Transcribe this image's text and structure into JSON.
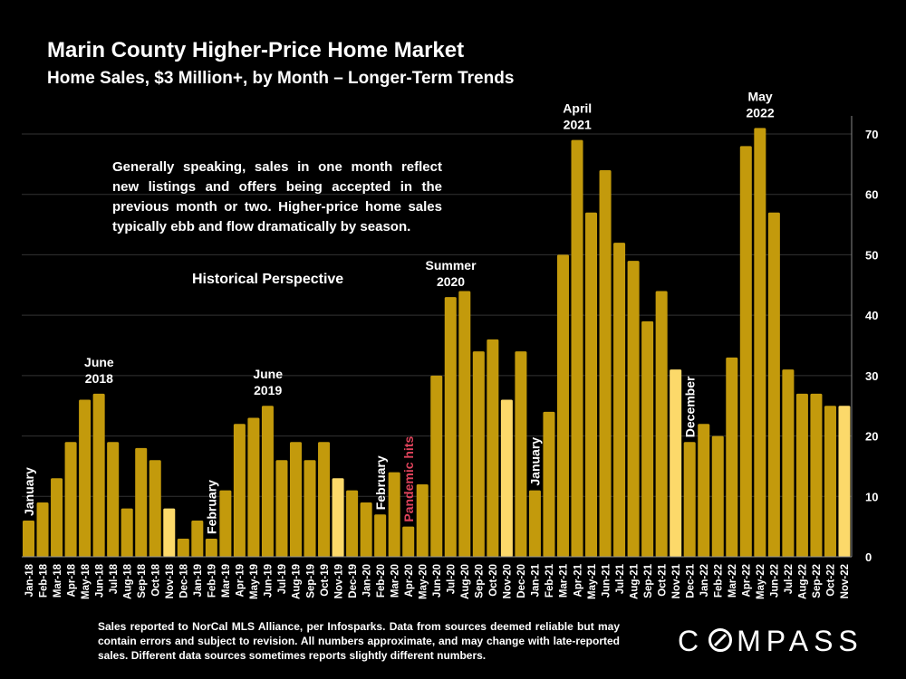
{
  "header": {
    "title": "Marin County Higher-Price Home Market",
    "subtitle": "Home Sales, $3 Million+, by Month – Longer-Term Trends"
  },
  "note": "Generally speaking, sales in one month reflect new listings and offers being accepted in the previous month or two. Higher-price home sales typically ebb and flow dramatically by season.",
  "historical_label": "Historical Perspective",
  "footer": "Sales reported to NorCal MLS Alliance, per Infosparks. Data from sources deemed reliable but may contain errors and subject to revision. All numbers approximate, and may change with late-reported sales. Different data sources sometimes reports slightly different numbers.",
  "logo": {
    "pre": "C",
    "post": "MPASS"
  },
  "colors": {
    "bar": "#c39a0c",
    "highlight": "#fcd96a",
    "pandemic": "#e0435b",
    "background": "#000000"
  },
  "chart_data": {
    "type": "bar",
    "categories": [
      "Jan-18",
      "Feb-18",
      "Mar-18",
      "Apr-18",
      "May-18",
      "Jun-18",
      "Jul-18",
      "Aug-18",
      "Sep-18",
      "Oct-18",
      "Nov-18",
      "Dec-18",
      "Jan-19",
      "Feb-19",
      "Mar-19",
      "Apr-19",
      "May-19",
      "Jun-19",
      "Jul-19",
      "Aug-19",
      "Sep-19",
      "Oct-19",
      "Nov-19",
      "Dec-19",
      "Jan-20",
      "Feb-20",
      "Mar-20",
      "Apr-20",
      "May-20",
      "Jun-20",
      "Jul-20",
      "Aug-20",
      "Sep-20",
      "Oct-20",
      "Nov-20",
      "Dec-20",
      "Jan-21",
      "Feb-21",
      "Mar-21",
      "Apr-21",
      "May-21",
      "Jun-21",
      "Jul-21",
      "Aug-21",
      "Sep-21",
      "Oct-21",
      "Nov-21",
      "Dec-21",
      "Jan-22",
      "Feb-22",
      "Mar-22",
      "Apr-22",
      "May-22",
      "Jun-22",
      "Jul-22",
      "Aug-22",
      "Sep-22",
      "Oct-22",
      "Nov-22"
    ],
    "values": [
      6,
      9,
      13,
      19,
      26,
      27,
      19,
      8,
      18,
      16,
      8,
      3,
      6,
      3,
      11,
      22,
      23,
      25,
      16,
      19,
      16,
      19,
      13,
      11,
      9,
      7,
      14,
      5,
      12,
      30,
      43,
      44,
      34,
      36,
      26,
      34,
      11,
      24,
      50,
      69,
      57,
      64,
      52,
      49,
      39,
      44,
      31,
      19,
      22,
      20,
      33,
      68,
      71,
      57,
      31,
      27,
      27,
      25,
      25
    ],
    "highlighted": [
      "Nov-18",
      "Nov-19",
      "Nov-20",
      "Nov-21",
      "Nov-22"
    ],
    "ylim": [
      0,
      70
    ],
    "yticks": [
      0,
      10,
      20,
      30,
      40,
      50,
      60,
      70
    ],
    "y_axis_side": "right",
    "grid": true,
    "annotations": [
      {
        "text": "January",
        "category": "Jan-18",
        "orientation": "vertical"
      },
      {
        "text": "June",
        "text2": "2018",
        "category": "Jun-18",
        "orientation": "horizontal"
      },
      {
        "text": "February",
        "category": "Feb-19",
        "orientation": "vertical"
      },
      {
        "text": "June",
        "text2": "2019",
        "category": "Jun-19",
        "orientation": "horizontal"
      },
      {
        "text": "February",
        "category": "Feb-20",
        "orientation": "vertical"
      },
      {
        "text": "Pandemic hits",
        "category": "Apr-20",
        "orientation": "vertical",
        "color": "pandemic"
      },
      {
        "text": "Summer",
        "text2": "2020",
        "category": "Jul-20",
        "orientation": "horizontal"
      },
      {
        "text": "January",
        "category": "Jan-21",
        "orientation": "vertical"
      },
      {
        "text": "April",
        "text2": "2021",
        "category": "Apr-21",
        "orientation": "horizontal"
      },
      {
        "text": "December",
        "category": "Dec-21",
        "orientation": "vertical"
      },
      {
        "text": "May",
        "text2": "2022",
        "category": "May-22",
        "orientation": "horizontal"
      }
    ]
  }
}
